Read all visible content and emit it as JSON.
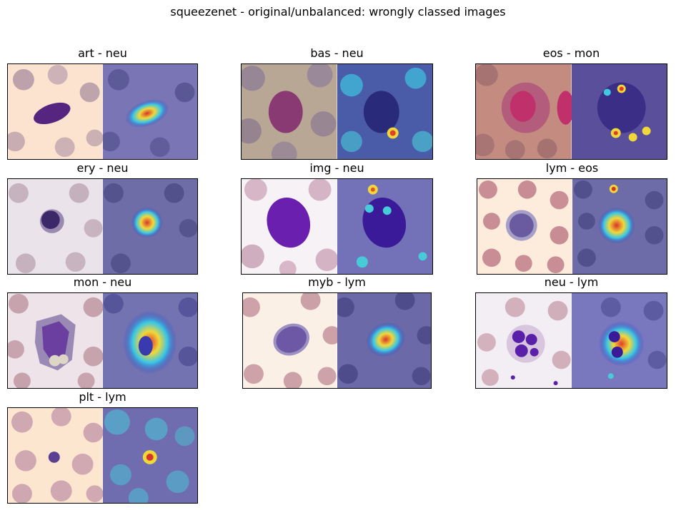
{
  "figure": {
    "title": "squeezenet - original/unbalanced: wrongly classed images"
  },
  "panels": [
    {
      "label": "art - neu",
      "background": "#fbe3cf",
      "cell_color": "#55257f",
      "heatmap_center": "#d9342a",
      "overlay": "#7a76b5"
    },
    {
      "label": "bas - neu",
      "background": "#b9a795",
      "cell_color": "#8a3a72",
      "heatmap_center": "#e1402a",
      "overlay": "#4a5ba8"
    },
    {
      "label": "eos - mon",
      "background": "#c48c80",
      "cell_color": "#c0306a",
      "heatmap_center": "#e23a2a",
      "overlay": "#5a4f9a"
    },
    {
      "label": "ery - neu",
      "background": "#eae3ea",
      "cell_color": "#3b2868",
      "heatmap_center": "#d9362a",
      "overlay": "#6f6da8"
    },
    {
      "label": "img - neu",
      "background": "#f6f2f6",
      "cell_color": "#6a1fae",
      "heatmap_center": "#e2562a",
      "overlay": "#7372b8"
    },
    {
      "label": "lym - eos",
      "background": "#fdecdc",
      "cell_color": "#6a5ba0",
      "heatmap_center": "#d9332a",
      "overlay": "#6e6ca8"
    },
    {
      "label": "mon - neu",
      "background": "#ede3e8",
      "cell_color": "#6b3fa0",
      "heatmap_center": "#e33a2a",
      "overlay": "#7473b2"
    },
    {
      "label": "myb - lym",
      "background": "#faf0e5",
      "cell_color": "#6d58a6",
      "heatmap_center": "#d9342a",
      "overlay": "#6b69a8"
    },
    {
      "label": "neu - lym",
      "background": "#f3eef3",
      "cell_color": "#5a1fa8",
      "heatmap_center": "#e03d2a",
      "overlay": "#7977be"
    },
    {
      "label": "plt - lym",
      "background": "#fde6d0",
      "cell_color": "#5b3f93",
      "heatmap_center": "#d9342a",
      "overlay": "#6f6db0"
    }
  ]
}
